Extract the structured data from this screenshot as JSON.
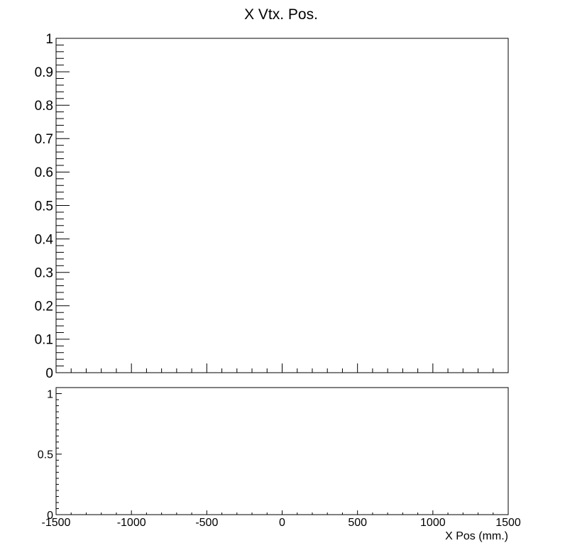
{
  "chart_data": [
    {
      "type": "line",
      "title": "X Vtx. Pos.",
      "xlabel": "",
      "ylabel": "",
      "xlim": [
        -1500,
        1500
      ],
      "ylim": [
        0,
        1
      ],
      "yticks": [
        0,
        0.1,
        0.2,
        0.3,
        0.4,
        0.5,
        0.6,
        0.7,
        0.8,
        0.9,
        1
      ],
      "yticklabels": [
        "0",
        "0.1",
        "0.2",
        "0.3",
        "0.4",
        "0.5",
        "0.6",
        "0.7",
        "0.8",
        "0.9",
        "1"
      ],
      "series": [],
      "grid": false
    },
    {
      "type": "line",
      "title": "",
      "xlabel": "X Pos (mm.)",
      "ylabel": "",
      "xlim": [
        -1500,
        1500
      ],
      "ylim": [
        0,
        1.05
      ],
      "xticks": [
        -1500,
        -1000,
        -500,
        0,
        500,
        1000,
        1500
      ],
      "xticklabels": [
        "-1500",
        "-1000",
        "-500",
        "0",
        "500",
        "1000",
        "1500"
      ],
      "yticks": [
        0,
        0.5,
        1
      ],
      "yticklabels": [
        "0",
        "0.5",
        "1"
      ],
      "series": [],
      "grid": false
    }
  ]
}
